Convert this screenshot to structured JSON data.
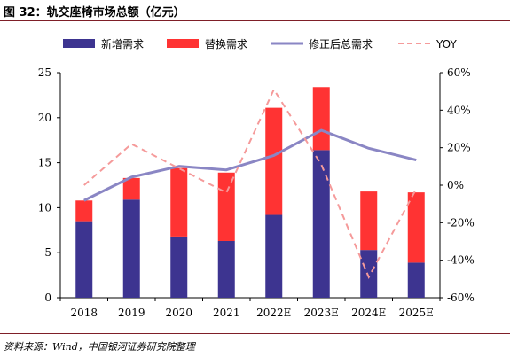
{
  "header": {
    "title": "图 32：轨交座椅市场总额（亿元）"
  },
  "footer": {
    "source": "资料来源：Wind，中国银河证券研究院整理"
  },
  "colors": {
    "new": "#3d3490",
    "replace": "#ff3333",
    "total": "#8a86c4",
    "yoy": "#f59a9a",
    "rule": "#7f1f28"
  },
  "chart_data": {
    "type": "bar",
    "stacked": true,
    "categories": [
      "2018",
      "2019",
      "2020",
      "2021",
      "2022E",
      "2023E",
      "2024E",
      "2025E"
    ],
    "series": [
      {
        "name": "新增需求",
        "kind": "bar",
        "axis": "left",
        "values": [
          8.5,
          10.9,
          6.8,
          6.3,
          9.2,
          16.4,
          5.3,
          3.9
        ]
      },
      {
        "name": "替换需求",
        "kind": "bar",
        "axis": "left",
        "values": [
          2.3,
          2.4,
          7.6,
          7.6,
          11.9,
          7.0,
          6.5,
          7.8
        ]
      },
      {
        "name": "修正后总需求",
        "kind": "line",
        "axis": "left",
        "values": [
          10.8,
          13.4,
          14.6,
          14.2,
          15.8,
          18.6,
          16.6,
          15.3
        ]
      },
      {
        "name": "YOY",
        "kind": "line",
        "dashed": true,
        "axis": "right",
        "values": [
          0.0,
          0.22,
          0.09,
          -0.04,
          0.51,
          0.11,
          -0.49,
          -0.02
        ]
      }
    ],
    "left_axis": {
      "ylim": [
        0,
        25
      ],
      "ticks": [
        "0",
        "5",
        "10",
        "15",
        "20",
        "25"
      ]
    },
    "right_axis": {
      "ylim": [
        -0.6,
        0.6
      ],
      "ticks": [
        "-60%",
        "-40%",
        "-20%",
        "0%",
        "20%",
        "40%",
        "60%"
      ]
    },
    "legend": {
      "position": "top"
    },
    "grid": false
  }
}
